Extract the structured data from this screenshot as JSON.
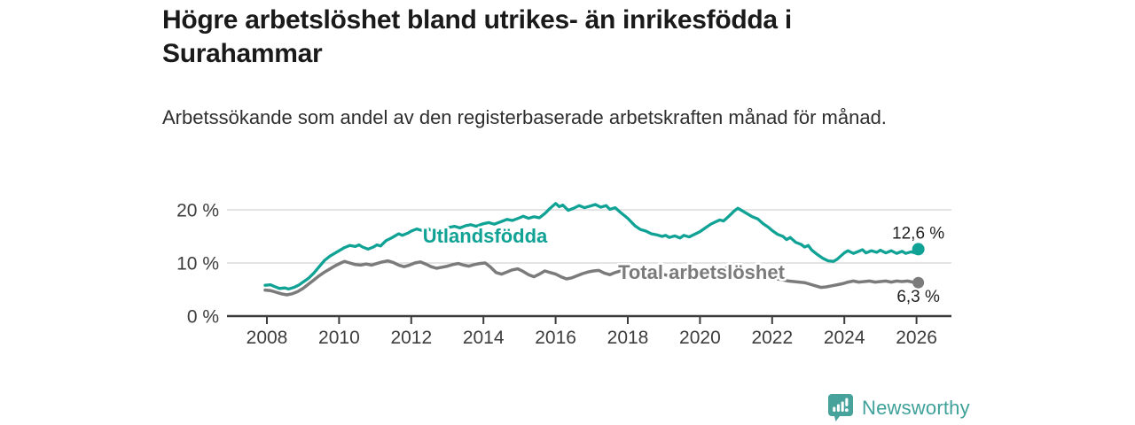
{
  "header": {
    "title": "Högre arbetslöshet bland utrikes- än inrikesfödda i Surahammar",
    "subtitle": "Arbetssökande som andel av den registerbaserade arbetskraften månad för månad."
  },
  "footer": {
    "brand": "Newsworthy"
  },
  "colors": {
    "accent_teal": "#0fa295",
    "line_gray": "#7b7b7b",
    "grid": "#dcdcdc",
    "axis": "#3c3c3c",
    "tick_text": "#3d3d3d",
    "end_label_text": "#1f1f1f",
    "logo_teal": "#3fa19a"
  },
  "chart_data": {
    "type": "line",
    "title": "Högre arbetslöshet bland utrikes- än inrikesfödda i Surahammar",
    "subtitle": "Arbetssökande som andel av den registerbaserade arbetskraften månad för månad.",
    "unit": "%",
    "grid": true,
    "legend_position": "inline-labels",
    "x_axis": {
      "range": [
        2007.8,
        2027.0
      ],
      "ticks": [
        2008,
        2010,
        2012,
        2014,
        2016,
        2018,
        2020,
        2022,
        2024,
        2026
      ]
    },
    "y_axis": {
      "range": [
        0,
        22.5
      ],
      "ticks": [
        0,
        10,
        20
      ],
      "tick_labels": [
        "0 %",
        "10 %",
        "20 %"
      ]
    },
    "series": [
      {
        "name": "Utlandsfödda",
        "color": "#0fa295",
        "end_value": 12.6,
        "end_label": "12,6 %",
        "points": [
          [
            2007.95,
            5.8
          ],
          [
            2008.1,
            5.9
          ],
          [
            2008.2,
            5.6
          ],
          [
            2008.35,
            5.2
          ],
          [
            2008.5,
            5.3
          ],
          [
            2008.6,
            5.1
          ],
          [
            2008.75,
            5.4
          ],
          [
            2008.9,
            5.9
          ],
          [
            2009.0,
            6.4
          ],
          [
            2009.15,
            7.1
          ],
          [
            2009.3,
            8.1
          ],
          [
            2009.45,
            9.3
          ],
          [
            2009.6,
            10.5
          ],
          [
            2009.75,
            11.3
          ],
          [
            2009.9,
            11.9
          ],
          [
            2010.0,
            12.3
          ],
          [
            2010.15,
            12.9
          ],
          [
            2010.3,
            13.3
          ],
          [
            2010.45,
            13.1
          ],
          [
            2010.55,
            13.4
          ],
          [
            2010.65,
            13.0
          ],
          [
            2010.8,
            12.6
          ],
          [
            2010.95,
            13.0
          ],
          [
            2011.05,
            13.4
          ],
          [
            2011.15,
            13.2
          ],
          [
            2011.3,
            14.2
          ],
          [
            2011.45,
            14.7
          ],
          [
            2011.55,
            15.1
          ],
          [
            2011.65,
            15.5
          ],
          [
            2011.75,
            15.2
          ],
          [
            2011.9,
            15.6
          ],
          [
            2012.0,
            16.0
          ],
          [
            2012.15,
            16.4
          ],
          [
            2012.3,
            16.1
          ],
          [
            2012.45,
            16.5
          ],
          [
            2012.6,
            16.0
          ],
          [
            2012.75,
            15.8
          ],
          [
            2012.9,
            16.2
          ],
          [
            2013.05,
            16.7
          ],
          [
            2013.2,
            16.9
          ],
          [
            2013.35,
            16.6
          ],
          [
            2013.5,
            17.0
          ],
          [
            2013.65,
            17.2
          ],
          [
            2013.8,
            16.9
          ],
          [
            2014.0,
            17.4
          ],
          [
            2014.15,
            17.6
          ],
          [
            2014.3,
            17.3
          ],
          [
            2014.5,
            17.8
          ],
          [
            2014.65,
            18.2
          ],
          [
            2014.8,
            18.0
          ],
          [
            2015.0,
            18.5
          ],
          [
            2015.1,
            18.8
          ],
          [
            2015.25,
            18.4
          ],
          [
            2015.4,
            18.7
          ],
          [
            2015.55,
            18.5
          ],
          [
            2015.7,
            19.3
          ],
          [
            2015.85,
            20.3
          ],
          [
            2016.0,
            21.2
          ],
          [
            2016.1,
            20.6
          ],
          [
            2016.2,
            20.9
          ],
          [
            2016.35,
            19.9
          ],
          [
            2016.5,
            20.3
          ],
          [
            2016.65,
            20.8
          ],
          [
            2016.8,
            20.4
          ],
          [
            2016.95,
            20.7
          ],
          [
            2017.1,
            21.0
          ],
          [
            2017.25,
            20.5
          ],
          [
            2017.4,
            20.8
          ],
          [
            2017.5,
            20.1
          ],
          [
            2017.65,
            20.4
          ],
          [
            2017.8,
            19.5
          ],
          [
            2018.0,
            18.4
          ],
          [
            2018.2,
            17.0
          ],
          [
            2018.35,
            16.3
          ],
          [
            2018.5,
            16.0
          ],
          [
            2018.65,
            15.5
          ],
          [
            2018.8,
            15.3
          ],
          [
            2018.95,
            15.0
          ],
          [
            2019.05,
            15.2
          ],
          [
            2019.15,
            14.8
          ],
          [
            2019.3,
            15.1
          ],
          [
            2019.45,
            14.7
          ],
          [
            2019.55,
            15.2
          ],
          [
            2019.7,
            14.9
          ],
          [
            2019.85,
            15.4
          ],
          [
            2020.0,
            15.9
          ],
          [
            2020.15,
            16.6
          ],
          [
            2020.3,
            17.3
          ],
          [
            2020.45,
            17.8
          ],
          [
            2020.55,
            18.1
          ],
          [
            2020.65,
            17.9
          ],
          [
            2020.8,
            18.8
          ],
          [
            2020.95,
            19.8
          ],
          [
            2021.05,
            20.3
          ],
          [
            2021.15,
            19.9
          ],
          [
            2021.3,
            19.3
          ],
          [
            2021.45,
            18.7
          ],
          [
            2021.6,
            18.3
          ],
          [
            2021.75,
            17.4
          ],
          [
            2021.9,
            16.7
          ],
          [
            2022.0,
            16.1
          ],
          [
            2022.15,
            15.4
          ],
          [
            2022.3,
            15.0
          ],
          [
            2022.4,
            14.4
          ],
          [
            2022.5,
            14.8
          ],
          [
            2022.65,
            13.9
          ],
          [
            2022.8,
            13.5
          ],
          [
            2022.9,
            13.0
          ],
          [
            2023.0,
            13.3
          ],
          [
            2023.1,
            12.4
          ],
          [
            2023.25,
            11.6
          ],
          [
            2023.4,
            10.9
          ],
          [
            2023.55,
            10.4
          ],
          [
            2023.7,
            10.3
          ],
          [
            2023.8,
            10.7
          ],
          [
            2023.9,
            11.3
          ],
          [
            2024.0,
            11.9
          ],
          [
            2024.1,
            12.3
          ],
          [
            2024.25,
            11.8
          ],
          [
            2024.4,
            12.2
          ],
          [
            2024.5,
            12.5
          ],
          [
            2024.6,
            11.9
          ],
          [
            2024.75,
            12.3
          ],
          [
            2024.9,
            12.0
          ],
          [
            2025.0,
            12.4
          ],
          [
            2025.15,
            11.9
          ],
          [
            2025.3,
            12.3
          ],
          [
            2025.45,
            11.8
          ],
          [
            2025.6,
            12.2
          ],
          [
            2025.7,
            11.8
          ],
          [
            2025.85,
            12.1
          ],
          [
            2025.95,
            11.9
          ],
          [
            2026.05,
            12.6
          ]
        ]
      },
      {
        "name": "Total arbetslöshet",
        "color": "#7b7b7b",
        "end_value": 6.3,
        "end_label": "6,3 %",
        "points": [
          [
            2007.95,
            4.9
          ],
          [
            2008.1,
            4.8
          ],
          [
            2008.25,
            4.5
          ],
          [
            2008.4,
            4.2
          ],
          [
            2008.55,
            4.0
          ],
          [
            2008.7,
            4.2
          ],
          [
            2008.85,
            4.6
          ],
          [
            2009.0,
            5.2
          ],
          [
            2009.15,
            6.0
          ],
          [
            2009.3,
            6.8
          ],
          [
            2009.45,
            7.6
          ],
          [
            2009.6,
            8.3
          ],
          [
            2009.75,
            8.9
          ],
          [
            2009.9,
            9.5
          ],
          [
            2010.05,
            10.0
          ],
          [
            2010.15,
            10.3
          ],
          [
            2010.3,
            10.0
          ],
          [
            2010.45,
            9.7
          ],
          [
            2010.6,
            9.6
          ],
          [
            2010.75,
            9.8
          ],
          [
            2010.9,
            9.6
          ],
          [
            2011.05,
            9.9
          ],
          [
            2011.2,
            10.2
          ],
          [
            2011.35,
            10.4
          ],
          [
            2011.5,
            10.1
          ],
          [
            2011.65,
            9.6
          ],
          [
            2011.8,
            9.3
          ],
          [
            2011.95,
            9.6
          ],
          [
            2012.1,
            10.0
          ],
          [
            2012.25,
            10.2
          ],
          [
            2012.4,
            9.8
          ],
          [
            2012.55,
            9.3
          ],
          [
            2012.7,
            9.0
          ],
          [
            2012.85,
            9.2
          ],
          [
            2013.0,
            9.4
          ],
          [
            2013.15,
            9.7
          ],
          [
            2013.3,
            9.9
          ],
          [
            2013.45,
            9.6
          ],
          [
            2013.6,
            9.4
          ],
          [
            2013.75,
            9.7
          ],
          [
            2013.9,
            9.9
          ],
          [
            2014.05,
            10.0
          ],
          [
            2014.2,
            9.2
          ],
          [
            2014.35,
            8.2
          ],
          [
            2014.5,
            7.9
          ],
          [
            2014.65,
            8.3
          ],
          [
            2014.8,
            8.7
          ],
          [
            2014.95,
            8.9
          ],
          [
            2015.1,
            8.4
          ],
          [
            2015.25,
            7.8
          ],
          [
            2015.4,
            7.4
          ],
          [
            2015.55,
            7.9
          ],
          [
            2015.7,
            8.5
          ],
          [
            2015.85,
            8.2
          ],
          [
            2016.0,
            7.9
          ],
          [
            2016.15,
            7.4
          ],
          [
            2016.3,
            7.0
          ],
          [
            2016.45,
            7.2
          ],
          [
            2016.6,
            7.6
          ],
          [
            2016.75,
            8.0
          ],
          [
            2016.9,
            8.3
          ],
          [
            2017.05,
            8.5
          ],
          [
            2017.2,
            8.6
          ],
          [
            2017.35,
            8.1
          ],
          [
            2017.5,
            7.8
          ],
          [
            2017.65,
            8.2
          ],
          [
            2017.8,
            8.5
          ],
          [
            2017.95,
            8.3
          ],
          [
            2018.1,
            8.0
          ],
          [
            2018.25,
            7.7
          ],
          [
            2018.4,
            7.5
          ],
          [
            2018.55,
            7.7
          ],
          [
            2018.7,
            7.9
          ],
          [
            2018.85,
            8.0
          ],
          [
            2019.0,
            7.8
          ],
          [
            2019.15,
            7.6
          ],
          [
            2019.3,
            7.8
          ],
          [
            2019.45,
            8.0
          ],
          [
            2019.6,
            8.2
          ],
          [
            2019.75,
            8.0
          ],
          [
            2019.9,
            8.2
          ],
          [
            2020.05,
            8.4
          ],
          [
            2020.2,
            8.6
          ],
          [
            2020.35,
            8.8
          ],
          [
            2020.5,
            8.9
          ],
          [
            2020.65,
            9.0
          ],
          [
            2020.8,
            9.1
          ],
          [
            2020.95,
            9.0
          ],
          [
            2021.1,
            8.8
          ],
          [
            2021.25,
            8.5
          ],
          [
            2021.4,
            8.2
          ],
          [
            2021.55,
            8.0
          ],
          [
            2021.7,
            7.7
          ],
          [
            2021.85,
            7.5
          ],
          [
            2022.0,
            7.3
          ],
          [
            2022.15,
            7.0
          ],
          [
            2022.3,
            6.8
          ],
          [
            2022.45,
            6.6
          ],
          [
            2022.6,
            6.5
          ],
          [
            2022.75,
            6.4
          ],
          [
            2022.9,
            6.3
          ],
          [
            2023.05,
            6.0
          ],
          [
            2023.2,
            5.7
          ],
          [
            2023.35,
            5.4
          ],
          [
            2023.5,
            5.5
          ],
          [
            2023.65,
            5.7
          ],
          [
            2023.8,
            5.9
          ],
          [
            2023.95,
            6.1
          ],
          [
            2024.1,
            6.4
          ],
          [
            2024.25,
            6.6
          ],
          [
            2024.4,
            6.4
          ],
          [
            2024.55,
            6.5
          ],
          [
            2024.7,
            6.6
          ],
          [
            2024.85,
            6.4
          ],
          [
            2025.0,
            6.5
          ],
          [
            2025.15,
            6.6
          ],
          [
            2025.3,
            6.4
          ],
          [
            2025.45,
            6.6
          ],
          [
            2025.6,
            6.5
          ],
          [
            2025.75,
            6.6
          ],
          [
            2025.9,
            6.4
          ],
          [
            2026.05,
            6.3
          ]
        ]
      }
    ]
  }
}
